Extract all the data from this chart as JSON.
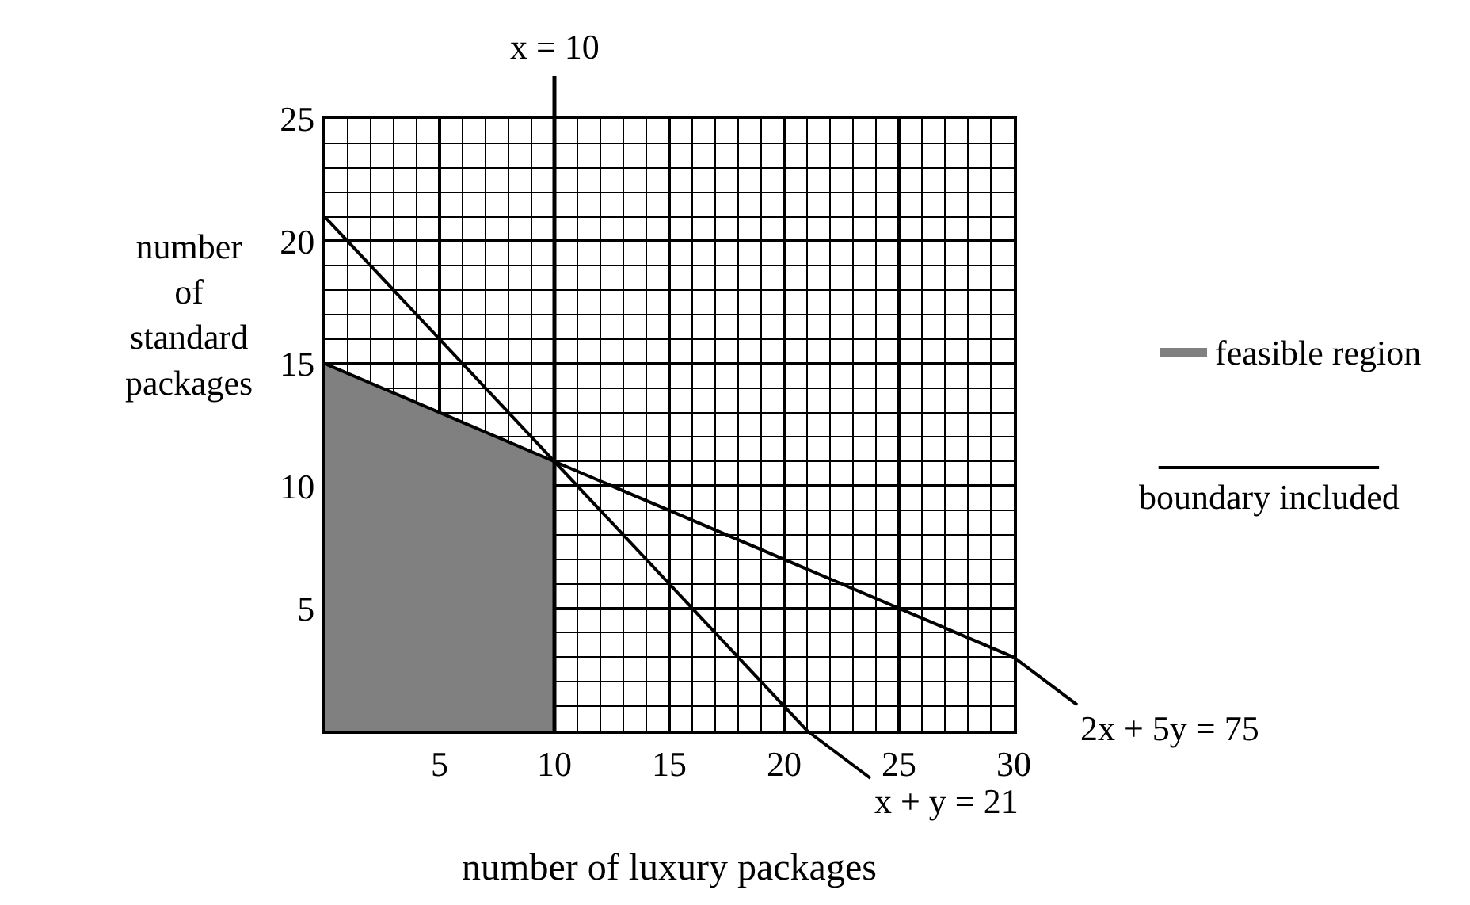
{
  "chart_data": {
    "type": "line",
    "xlabel": "number of luxury packages",
    "ylabel": "number of standard packages",
    "xlim": [
      0,
      30
    ],
    "ylim": [
      0,
      25
    ],
    "xticks": [
      5,
      10,
      15,
      20,
      25,
      30
    ],
    "yticks": [
      5,
      10,
      15,
      20,
      25
    ],
    "grid": true,
    "legend": "right",
    "line_style": "solid",
    "marker": "none",
    "series": [
      {
        "name": "feasible region",
        "type": "area",
        "color": "#808080",
        "x": [
          0,
          10
        ],
        "values": [
          15,
          11
        ]
      },
      {
        "color": "#000000",
        "x": [
          0,
          21
        ],
        "values": [
          21,
          0
        ]
      },
      {
        "color": "#000000",
        "x": [
          0,
          30
        ],
        "values": [
          15,
          3
        ]
      }
    ],
    "ref_lines": [
      {
        "axis": "x",
        "value": 10,
        "label": "x = 10",
        "color": "#000000"
      }
    ],
    "annotations": [
      {
        "text": "x + y = 21",
        "x": 21,
        "y": 0
      },
      {
        "text": "2x + 5y = 75",
        "x": 30,
        "y": 3
      },
      "boundary included"
    ]
  }
}
